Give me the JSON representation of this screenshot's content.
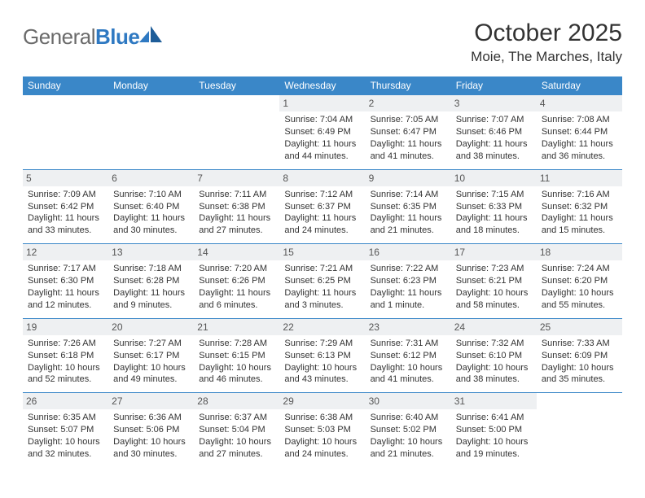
{
  "brand": {
    "word1": "General",
    "word2": "Blue"
  },
  "colors": {
    "brand_blue": "#2f79c2",
    "header_blue": "#3a87c8",
    "daynum_bg": "#eef0f2",
    "text": "#333333",
    "logo_gray": "#6b6b6b"
  },
  "title": {
    "month": "October 2025",
    "location": "Moie, The Marches, Italy"
  },
  "weekdays": [
    "Sunday",
    "Monday",
    "Tuesday",
    "Wednesday",
    "Thursday",
    "Friday",
    "Saturday"
  ],
  "cells": [
    {
      "empty": true
    },
    {
      "empty": true
    },
    {
      "empty": true
    },
    {
      "day": "1",
      "sunrise": "Sunrise: 7:04 AM",
      "sunset": "Sunset: 6:49 PM",
      "daylight": "Daylight: 11 hours and 44 minutes."
    },
    {
      "day": "2",
      "sunrise": "Sunrise: 7:05 AM",
      "sunset": "Sunset: 6:47 PM",
      "daylight": "Daylight: 11 hours and 41 minutes."
    },
    {
      "day": "3",
      "sunrise": "Sunrise: 7:07 AM",
      "sunset": "Sunset: 6:46 PM",
      "daylight": "Daylight: 11 hours and 38 minutes."
    },
    {
      "day": "4",
      "sunrise": "Sunrise: 7:08 AM",
      "sunset": "Sunset: 6:44 PM",
      "daylight": "Daylight: 11 hours and 36 minutes."
    },
    {
      "day": "5",
      "sunrise": "Sunrise: 7:09 AM",
      "sunset": "Sunset: 6:42 PM",
      "daylight": "Daylight: 11 hours and 33 minutes."
    },
    {
      "day": "6",
      "sunrise": "Sunrise: 7:10 AM",
      "sunset": "Sunset: 6:40 PM",
      "daylight": "Daylight: 11 hours and 30 minutes."
    },
    {
      "day": "7",
      "sunrise": "Sunrise: 7:11 AM",
      "sunset": "Sunset: 6:38 PM",
      "daylight": "Daylight: 11 hours and 27 minutes."
    },
    {
      "day": "8",
      "sunrise": "Sunrise: 7:12 AM",
      "sunset": "Sunset: 6:37 PM",
      "daylight": "Daylight: 11 hours and 24 minutes."
    },
    {
      "day": "9",
      "sunrise": "Sunrise: 7:14 AM",
      "sunset": "Sunset: 6:35 PM",
      "daylight": "Daylight: 11 hours and 21 minutes."
    },
    {
      "day": "10",
      "sunrise": "Sunrise: 7:15 AM",
      "sunset": "Sunset: 6:33 PM",
      "daylight": "Daylight: 11 hours and 18 minutes."
    },
    {
      "day": "11",
      "sunrise": "Sunrise: 7:16 AM",
      "sunset": "Sunset: 6:32 PM",
      "daylight": "Daylight: 11 hours and 15 minutes."
    },
    {
      "day": "12",
      "sunrise": "Sunrise: 7:17 AM",
      "sunset": "Sunset: 6:30 PM",
      "daylight": "Daylight: 11 hours and 12 minutes."
    },
    {
      "day": "13",
      "sunrise": "Sunrise: 7:18 AM",
      "sunset": "Sunset: 6:28 PM",
      "daylight": "Daylight: 11 hours and 9 minutes."
    },
    {
      "day": "14",
      "sunrise": "Sunrise: 7:20 AM",
      "sunset": "Sunset: 6:26 PM",
      "daylight": "Daylight: 11 hours and 6 minutes."
    },
    {
      "day": "15",
      "sunrise": "Sunrise: 7:21 AM",
      "sunset": "Sunset: 6:25 PM",
      "daylight": "Daylight: 11 hours and 3 minutes."
    },
    {
      "day": "16",
      "sunrise": "Sunrise: 7:22 AM",
      "sunset": "Sunset: 6:23 PM",
      "daylight": "Daylight: 11 hours and 1 minute."
    },
    {
      "day": "17",
      "sunrise": "Sunrise: 7:23 AM",
      "sunset": "Sunset: 6:21 PM",
      "daylight": "Daylight: 10 hours and 58 minutes."
    },
    {
      "day": "18",
      "sunrise": "Sunrise: 7:24 AM",
      "sunset": "Sunset: 6:20 PM",
      "daylight": "Daylight: 10 hours and 55 minutes."
    },
    {
      "day": "19",
      "sunrise": "Sunrise: 7:26 AM",
      "sunset": "Sunset: 6:18 PM",
      "daylight": "Daylight: 10 hours and 52 minutes."
    },
    {
      "day": "20",
      "sunrise": "Sunrise: 7:27 AM",
      "sunset": "Sunset: 6:17 PM",
      "daylight": "Daylight: 10 hours and 49 minutes."
    },
    {
      "day": "21",
      "sunrise": "Sunrise: 7:28 AM",
      "sunset": "Sunset: 6:15 PM",
      "daylight": "Daylight: 10 hours and 46 minutes."
    },
    {
      "day": "22",
      "sunrise": "Sunrise: 7:29 AM",
      "sunset": "Sunset: 6:13 PM",
      "daylight": "Daylight: 10 hours and 43 minutes."
    },
    {
      "day": "23",
      "sunrise": "Sunrise: 7:31 AM",
      "sunset": "Sunset: 6:12 PM",
      "daylight": "Daylight: 10 hours and 41 minutes."
    },
    {
      "day": "24",
      "sunrise": "Sunrise: 7:32 AM",
      "sunset": "Sunset: 6:10 PM",
      "daylight": "Daylight: 10 hours and 38 minutes."
    },
    {
      "day": "25",
      "sunrise": "Sunrise: 7:33 AM",
      "sunset": "Sunset: 6:09 PM",
      "daylight": "Daylight: 10 hours and 35 minutes."
    },
    {
      "day": "26",
      "sunrise": "Sunrise: 6:35 AM",
      "sunset": "Sunset: 5:07 PM",
      "daylight": "Daylight: 10 hours and 32 minutes."
    },
    {
      "day": "27",
      "sunrise": "Sunrise: 6:36 AM",
      "sunset": "Sunset: 5:06 PM",
      "daylight": "Daylight: 10 hours and 30 minutes."
    },
    {
      "day": "28",
      "sunrise": "Sunrise: 6:37 AM",
      "sunset": "Sunset: 5:04 PM",
      "daylight": "Daylight: 10 hours and 27 minutes."
    },
    {
      "day": "29",
      "sunrise": "Sunrise: 6:38 AM",
      "sunset": "Sunset: 5:03 PM",
      "daylight": "Daylight: 10 hours and 24 minutes."
    },
    {
      "day": "30",
      "sunrise": "Sunrise: 6:40 AM",
      "sunset": "Sunset: 5:02 PM",
      "daylight": "Daylight: 10 hours and 21 minutes."
    },
    {
      "day": "31",
      "sunrise": "Sunrise: 6:41 AM",
      "sunset": "Sunset: 5:00 PM",
      "daylight": "Daylight: 10 hours and 19 minutes."
    },
    {
      "empty": true
    }
  ]
}
